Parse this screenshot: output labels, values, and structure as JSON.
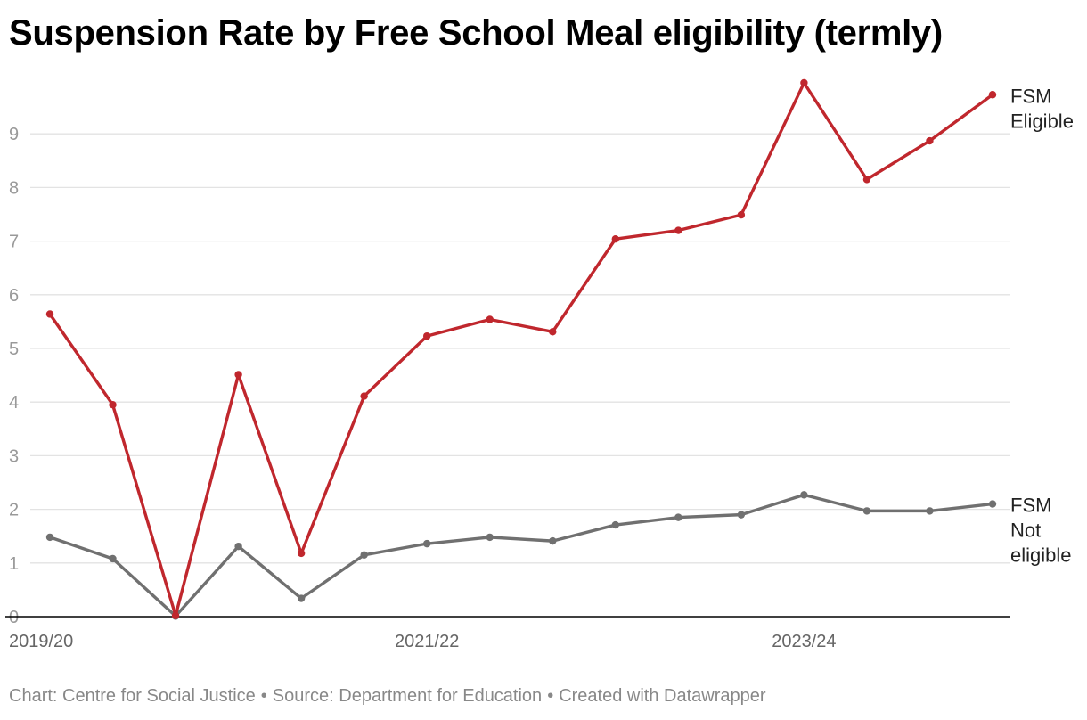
{
  "title": "Suspension Rate by Free School Meal eligibility (termly)",
  "footer": {
    "chart_credit": "Chart: Centre for Social Justice",
    "source": "Source: Department for Education",
    "created_with": "Created with Datawrapper",
    "separator": "•"
  },
  "colors": {
    "fsm_eligible": "#c0272d",
    "fsm_not_eligible": "#707070",
    "grid": "#e3e3e3",
    "baseline": "#000000"
  },
  "chart_data": {
    "type": "line",
    "title": "Suspension Rate by Free School Meal eligibility (termly)",
    "xlabel": "",
    "ylabel": "",
    "ylim": [
      0,
      10
    ],
    "yticks": [
      0,
      1,
      2,
      3,
      4,
      5,
      6,
      7,
      8,
      9
    ],
    "x": [
      0,
      1,
      2,
      3,
      4,
      5,
      6,
      7,
      8,
      9,
      10,
      11,
      12,
      13,
      14,
      15
    ],
    "xticks": [
      {
        "index": 0,
        "label": "2019/20"
      },
      {
        "index": 6,
        "label": "2021/22"
      },
      {
        "index": 12,
        "label": "2023/24"
      }
    ],
    "grid": true,
    "series": [
      {
        "name": "FSM Eligible",
        "label_lines": [
          "FSM",
          "Eligible"
        ],
        "color": "#c0272d",
        "values": [
          5.64,
          3.95,
          0.02,
          4.51,
          1.18,
          4.11,
          5.23,
          5.54,
          5.31,
          7.04,
          7.2,
          7.49,
          9.95,
          8.15,
          8.87,
          9.73
        ]
      },
      {
        "name": "FSM Not eligible",
        "label_lines": [
          "FSM",
          "Not",
          "eligible"
        ],
        "color": "#707070",
        "values": [
          1.48,
          1.08,
          0.01,
          1.31,
          0.34,
          1.15,
          1.36,
          1.48,
          1.41,
          1.71,
          1.85,
          1.9,
          2.27,
          1.97,
          1.97,
          2.1
        ]
      }
    ]
  }
}
